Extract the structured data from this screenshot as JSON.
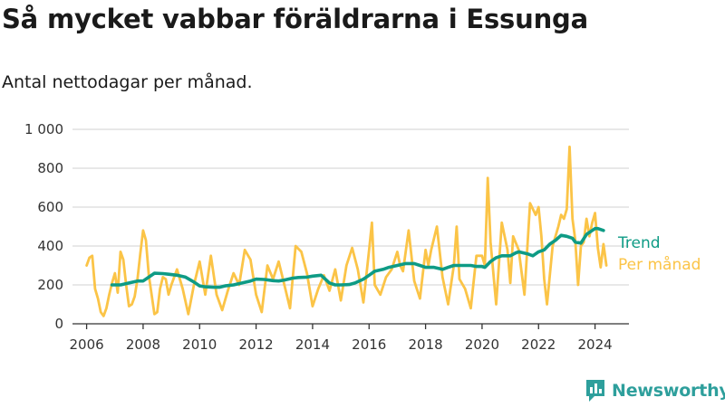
{
  "header": {
    "title": "Så mycket vabbar föräldrarna i Essunga",
    "subtitle": "Antal nettodagar per månad."
  },
  "brand": {
    "name": "Newsworthy",
    "icon": "newsworthy-logo-icon",
    "color": "#2e9f9c"
  },
  "colors": {
    "trend": "#0e9b85",
    "monthly": "#fbc447",
    "grid": "#d9d9d9",
    "axis": "#333333"
  },
  "chart_data": {
    "type": "line",
    "x_unit": "year (decimal)",
    "xlim": [
      2005.5,
      2025.2
    ],
    "ylim": [
      0,
      1000
    ],
    "x_ticks": [
      2006,
      2008,
      2010,
      2012,
      2014,
      2016,
      2018,
      2020,
      2022,
      2024
    ],
    "x_tick_labels": [
      "2006",
      "2008",
      "2010",
      "2012",
      "2014",
      "2016",
      "2018",
      "2020",
      "2022",
      "2024"
    ],
    "y_ticks": [
      0,
      200,
      400,
      600,
      800,
      1000
    ],
    "y_tick_labels": [
      "0",
      "200",
      "400",
      "600",
      "800",
      "1 000"
    ],
    "grid": true,
    "legend_placement": "right-end-of-lines",
    "series": [
      {
        "name": "Trend",
        "color": "#0e9b85",
        "x": [
          2006.9,
          2007.2,
          2007.5,
          2007.8,
          2008.0,
          2008.2,
          2008.4,
          2008.7,
          2008.9,
          2009.2,
          2009.5,
          2009.8,
          2010.0,
          2010.2,
          2010.5,
          2010.7,
          2010.9,
          2011.2,
          2011.5,
          2011.8,
          2012.0,
          2012.3,
          2012.6,
          2012.8,
          2013.0,
          2013.3,
          2013.5,
          2013.8,
          2014.0,
          2014.3,
          2014.6,
          2014.8,
          2015.0,
          2015.3,
          2015.5,
          2015.8,
          2016.0,
          2016.2,
          2016.5,
          2016.7,
          2017.0,
          2017.3,
          2017.6,
          2017.8,
          2018.0,
          2018.3,
          2018.6,
          2018.8,
          2019.0,
          2019.3,
          2019.6,
          2019.8,
          2020.0,
          2020.1,
          2020.3,
          2020.5,
          2020.7,
          2021.0,
          2021.2,
          2021.3,
          2021.6,
          2021.8,
          2022.0,
          2022.2,
          2022.4,
          2022.6,
          2022.8,
          2023.0,
          2023.2,
          2023.3,
          2023.5,
          2023.7,
          2023.9,
          2024.0,
          2024.1,
          2024.3
        ],
        "y": [
          200,
          200,
          210,
          220,
          220,
          240,
          260,
          258,
          255,
          250,
          240,
          215,
          195,
          190,
          188,
          188,
          195,
          200,
          210,
          220,
          230,
          228,
          222,
          220,
          225,
          235,
          238,
          240,
          245,
          250,
          210,
          200,
          200,
          202,
          210,
          230,
          250,
          270,
          280,
          290,
          300,
          310,
          310,
          300,
          290,
          290,
          280,
          290,
          300,
          300,
          300,
          295,
          295,
          290,
          320,
          340,
          350,
          350,
          365,
          370,
          360,
          350,
          370,
          380,
          410,
          430,
          455,
          450,
          440,
          420,
          415,
          460,
          480,
          490,
          490,
          480
        ]
      },
      {
        "name": "Per månad",
        "color": "#fbc447",
        "x": [
          2006.0,
          2006.1,
          2006.2,
          2006.3,
          2006.4,
          2006.5,
          2006.6,
          2006.7,
          2006.8,
          2006.9,
          2007.0,
          2007.1,
          2007.2,
          2007.3,
          2007.4,
          2007.5,
          2007.6,
          2007.7,
          2007.8,
          2007.9,
          2008.0,
          2008.1,
          2008.2,
          2008.3,
          2008.4,
          2008.5,
          2008.6,
          2008.7,
          2008.8,
          2008.9,
          2009.0,
          2009.2,
          2009.4,
          2009.6,
          2009.8,
          2010.0,
          2010.2,
          2010.4,
          2010.6,
          2010.8,
          2011.0,
          2011.2,
          2011.4,
          2011.6,
          2011.8,
          2012.0,
          2012.2,
          2012.4,
          2012.6,
          2012.8,
          2013.0,
          2013.2,
          2013.4,
          2013.6,
          2013.8,
          2014.0,
          2014.2,
          2014.4,
          2014.6,
          2014.8,
          2015.0,
          2015.2,
          2015.4,
          2015.6,
          2015.8,
          2016.0,
          2016.1,
          2016.2,
          2016.4,
          2016.6,
          2016.8,
          2017.0,
          2017.1,
          2017.2,
          2017.4,
          2017.6,
          2017.8,
          2018.0,
          2018.1,
          2018.2,
          2018.4,
          2018.6,
          2018.8,
          2019.0,
          2019.1,
          2019.2,
          2019.4,
          2019.6,
          2019.8,
          2020.0,
          2020.1,
          2020.2,
          2020.3,
          2020.5,
          2020.7,
          2020.9,
          2021.0,
          2021.1,
          2021.3,
          2021.5,
          2021.7,
          2021.9,
          2022.0,
          2022.1,
          2022.2,
          2022.3,
          2022.5,
          2022.7,
          2022.8,
          2022.9,
          2023.0,
          2023.1,
          2023.2,
          2023.3,
          2023.4,
          2023.5,
          2023.6,
          2023.7,
          2023.8,
          2023.9,
          2024.0,
          2024.1,
          2024.2,
          2024.3,
          2024.4
        ],
        "y": [
          300,
          340,
          350,
          180,
          130,
          60,
          40,
          80,
          150,
          210,
          260,
          160,
          370,
          330,
          200,
          90,
          100,
          140,
          230,
          360,
          480,
          430,
          250,
          150,
          50,
          60,
          180,
          240,
          230,
          150,
          200,
          280,
          180,
          50,
          200,
          320,
          150,
          350,
          150,
          70,
          170,
          260,
          200,
          380,
          330,
          150,
          60,
          300,
          230,
          320,
          200,
          80,
          400,
          370,
          260,
          90,
          180,
          250,
          170,
          280,
          120,
          300,
          390,
          280,
          110,
          380,
          520,
          200,
          150,
          240,
          280,
          370,
          300,
          270,
          480,
          220,
          130,
          380,
          300,
          380,
          500,
          240,
          100,
          300,
          500,
          230,
          180,
          80,
          350,
          350,
          300,
          750,
          420,
          100,
          520,
          380,
          210,
          450,
          380,
          150,
          620,
          560,
          600,
          450,
          230,
          100,
          400,
          500,
          560,
          540,
          590,
          910,
          540,
          430,
          200,
          400,
          420,
          540,
          450,
          520,
          570,
          390,
          290,
          410,
          300
        ]
      }
    ]
  }
}
